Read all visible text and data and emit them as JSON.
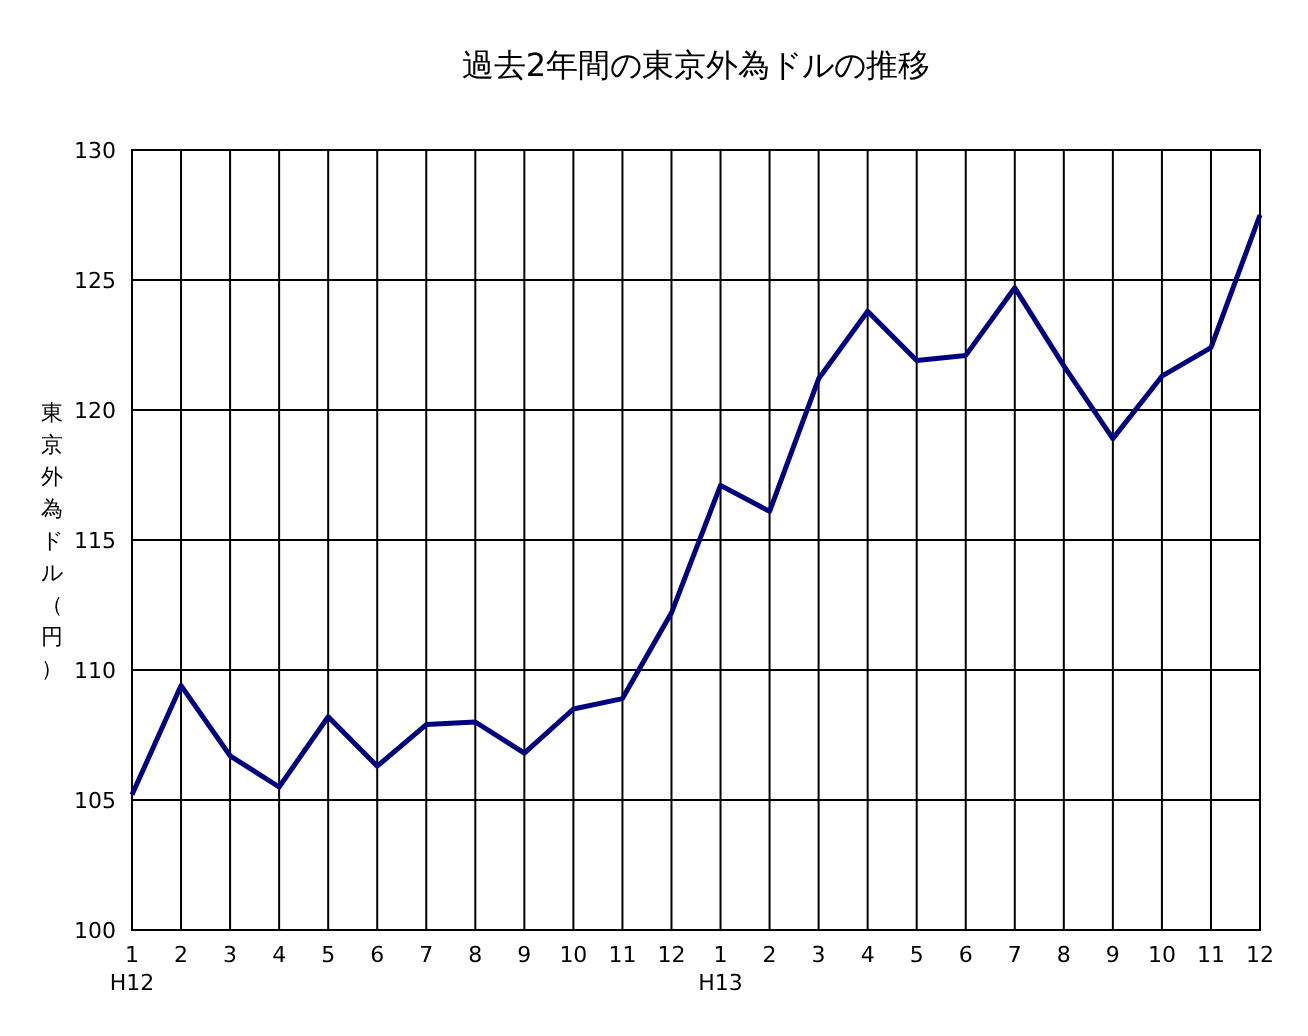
{
  "chart_data": {
    "type": "line",
    "title": "過去2年間の東京外為ドルの推移",
    "ylabel": "東京外為ドル（円）",
    "categories": [
      "1\nH12",
      "2",
      "3",
      "4",
      "5",
      "6",
      "7",
      "8",
      "9",
      "10",
      "11",
      "12",
      "1\nH13",
      "2",
      "3",
      "4",
      "5",
      "6",
      "7",
      "8",
      "9",
      "10",
      "11",
      "12"
    ],
    "series": [
      {
        "color": "#000080",
        "values": [
          105.2,
          109.4,
          106.7,
          105.5,
          108.2,
          106.3,
          107.9,
          108.0,
          106.8,
          108.5,
          108.9,
          112.2,
          117.1,
          116.1,
          121.2,
          123.8,
          121.9,
          122.1,
          124.7,
          121.7,
          118.9,
          121.3,
          122.4,
          127.5
        ]
      }
    ],
    "ylim": [
      100,
      130
    ],
    "yticks": [
      100,
      105,
      110,
      115,
      120,
      125,
      130
    ],
    "grid": true,
    "marker": "none",
    "line_style": "solid"
  }
}
